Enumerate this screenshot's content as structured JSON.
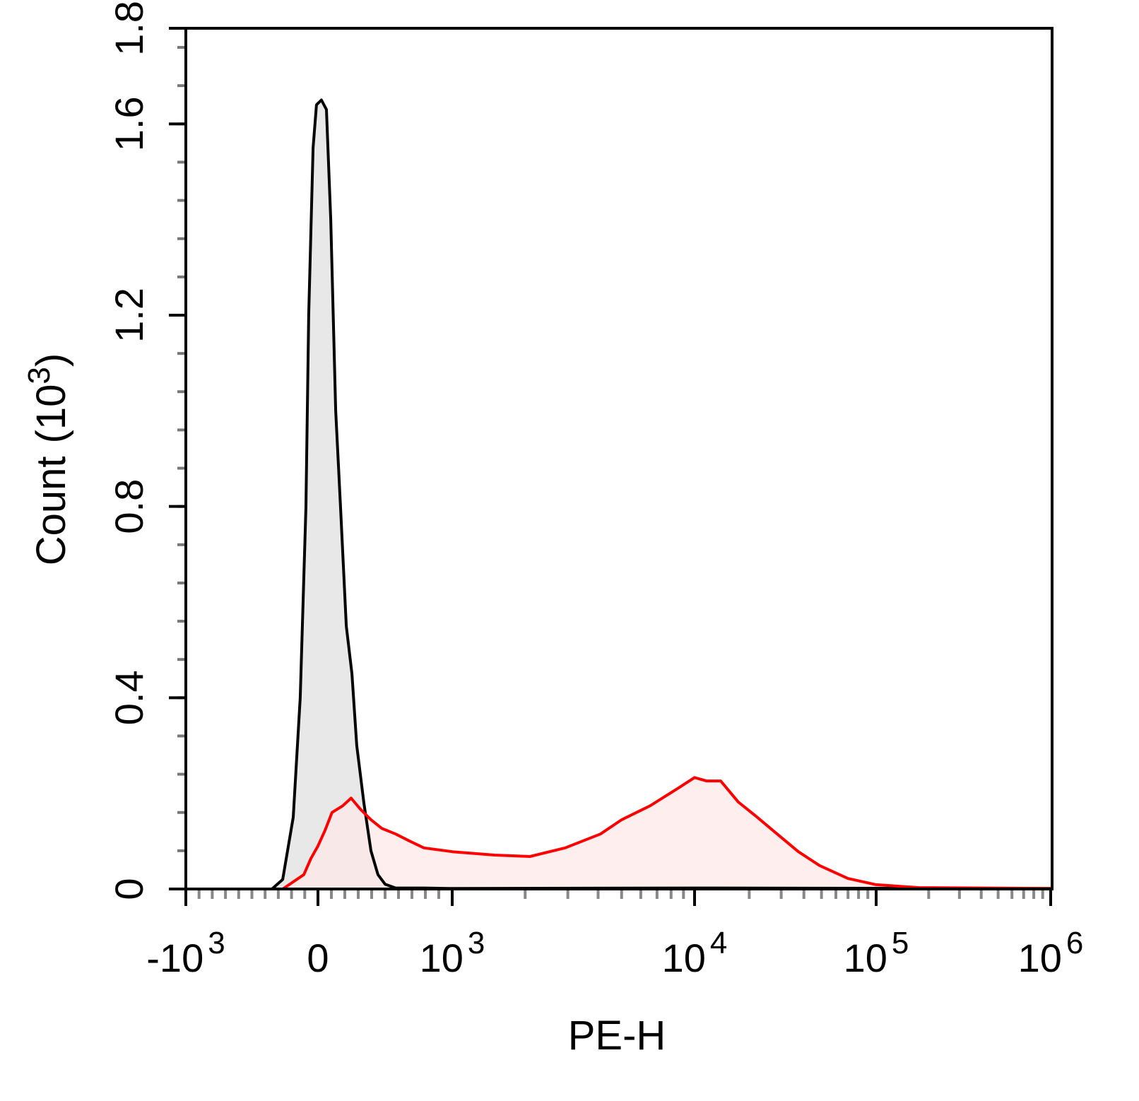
{
  "chart_data": {
    "type": "area",
    "title": "",
    "xlabel": "PE-H",
    "ylabel": "Count",
    "ylabel_unit_base": "10",
    "ylabel_unit_exp": "3",
    "x_scale": "biexponential",
    "xlim": [
      -1000,
      1000000
    ],
    "ylim": [
      0,
      1.8
    ],
    "grid": false,
    "x_ticks": [
      {
        "value": -1000,
        "base": "-10",
        "exp": "3"
      },
      {
        "value": 0,
        "base": "0",
        "exp": ""
      },
      {
        "value": 1000,
        "base": "10",
        "exp": "3"
      },
      {
        "value": 10000,
        "base": "10",
        "exp": "4"
      },
      {
        "value": 100000,
        "base": "10",
        "exp": "5"
      },
      {
        "value": 1000000,
        "base": "10",
        "exp": "6"
      }
    ],
    "y_ticks": [
      {
        "value": 0,
        "label": "0"
      },
      {
        "value": 0.4,
        "label": "0.4"
      },
      {
        "value": 0.8,
        "label": "0.8"
      },
      {
        "value": 1.2,
        "label": "1.2"
      },
      {
        "value": 1.6,
        "label": "1.6"
      },
      {
        "value": 1.8,
        "label": "1.8"
      }
    ],
    "series": [
      {
        "line_color": "#000000",
        "fill_color": "#e8e8e8",
        "x": [
          -1000,
          -348,
          -267,
          -187,
          -134,
          -91,
          -70,
          -37,
          -11,
          26,
          63,
          95,
          132,
          168,
          211,
          253,
          289,
          342,
          395,
          447,
          500,
          579,
          789,
          1000,
          10000,
          1000000
        ],
        "y": [
          0,
          0,
          0.02,
          0.15,
          0.4,
          0.8,
          1.2,
          1.55,
          1.64,
          1.65,
          1.63,
          1.4,
          1.0,
          0.8,
          0.55,
          0.45,
          0.3,
          0.18,
          0.08,
          0.03,
          0.01,
          0.002,
          0.002,
          0.001,
          0.002,
          0.001
        ]
      },
      {
        "line_color": "#ff0000",
        "fill_color": "#fde8e8",
        "x": [
          -1000,
          -267,
          -107,
          -53,
          0,
          53,
          105,
          184,
          247,
          316,
          395,
          474,
          579,
          684,
          789,
          1000,
          1496,
          2094,
          2925,
          4090,
          5010,
          6550,
          8570,
          10000,
          11640,
          13930,
          17400,
          21800,
          28500,
          37300,
          48800,
          69900,
          100000,
          175000,
          1000000
        ],
        "y": [
          0,
          0,
          0.03,
          0.064,
          0.09,
          0.123,
          0.16,
          0.174,
          0.19,
          0.167,
          0.145,
          0.127,
          0.115,
          0.1,
          0.086,
          0.078,
          0.071,
          0.068,
          0.086,
          0.115,
          0.145,
          0.174,
          0.211,
          0.233,
          0.226,
          0.226,
          0.182,
          0.152,
          0.115,
          0.078,
          0.049,
          0.022,
          0.009,
          0.003,
          0.001
        ]
      }
    ]
  }
}
